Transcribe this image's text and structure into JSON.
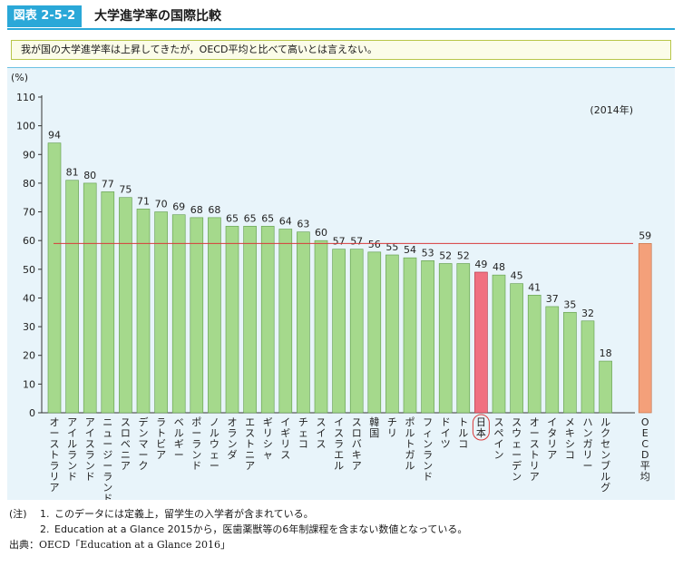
{
  "header": {
    "figure_number": "図表 2-5-2",
    "title": "大学進学率の国際比較"
  },
  "summary": "我が国の大学進学率は上昇してきたが，OECD平均と比べて高いとは言えない。",
  "chart_data": {
    "type": "bar",
    "title": "",
    "ylabel": "(%)",
    "xlabel": "",
    "annotation": "(2014年)",
    "ylim": [
      0,
      110
    ],
    "yticks": [
      0,
      10,
      20,
      30,
      40,
      50,
      60,
      70,
      80,
      90,
      100,
      110
    ],
    "grid": false,
    "reference_line": {
      "value": 59,
      "color": "#d93a3a"
    },
    "categories": [
      "オーストラリア",
      "アイルランド",
      "アイスランド",
      "ニュージーランド",
      "スロベニア",
      "デンマーク",
      "ラトビア",
      "ベルギー",
      "ポーランド",
      "ノルウェー",
      "オランダ",
      "エストニア",
      "ギリシャ",
      "イギリス",
      "チェコ",
      "スイス",
      "イスラエル",
      "スロバキア",
      "韓国",
      "チリ",
      "ポルトガル",
      "フィンランド",
      "ドイツ",
      "トルコ",
      "日本",
      "スペイン",
      "スウェーデン",
      "オーストリア",
      "イタリア",
      "メキシコ",
      "ハンガリー",
      "ルクセンブルグ",
      "OECD平均"
    ],
    "values": [
      94,
      81,
      80,
      77,
      75,
      71,
      70,
      69,
      68,
      68,
      65,
      65,
      65,
      64,
      63,
      60,
      57,
      57,
      56,
      55,
      54,
      53,
      52,
      52,
      49,
      48,
      45,
      41,
      37,
      35,
      32,
      18,
      59
    ],
    "highlight": {
      "category": "日本",
      "color": "#f07080",
      "circled": true
    },
    "average_bar": {
      "category": "OECD平均",
      "color": "#f4a07a"
    },
    "colors": {
      "bar": "#a5d98c",
      "bar_stroke": "#5e9a4a",
      "axis": "#333333",
      "frame": "#e8f4fa"
    }
  },
  "notes": {
    "label": "(注)",
    "items": [
      {
        "num": "1.",
        "text": "このデータには定義上，留学生の入学者が含まれている。"
      },
      {
        "num": "2.",
        "text": "Education at a Glance 2015から，医歯薬獣等の6年制課程を含まない数値となっている。"
      }
    ],
    "source": "出典：OECD「Education at a Glance 2016」"
  }
}
